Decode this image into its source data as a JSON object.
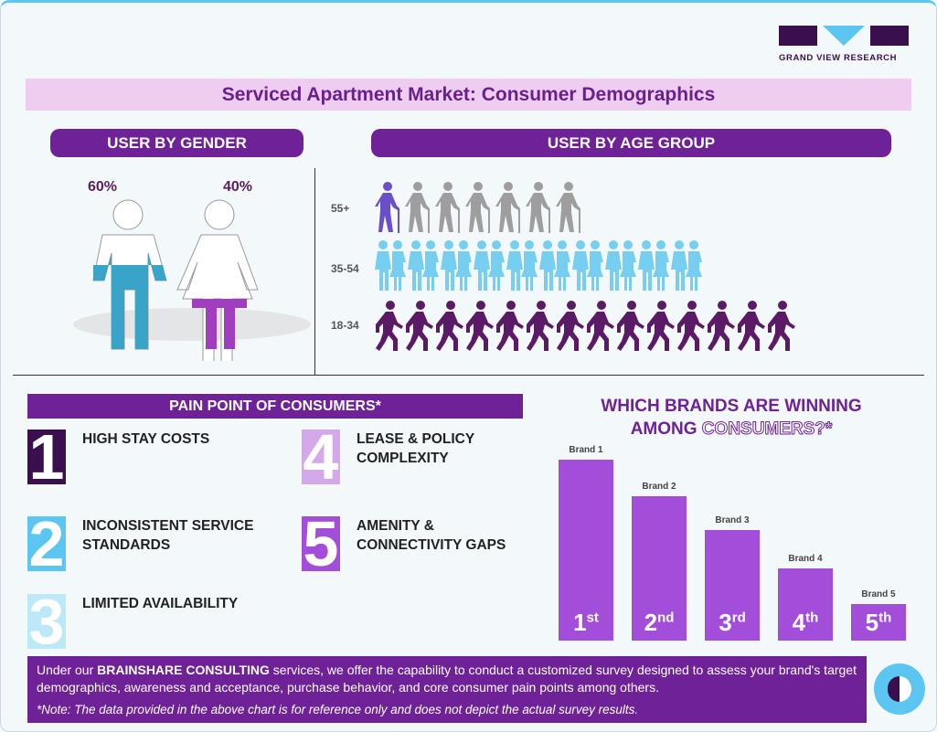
{
  "brand": {
    "name": "GRAND VIEW RESEARCH"
  },
  "title": "Serviced Apartment Market: Consumer Demographics",
  "gender": {
    "header": "USER BY GENDER",
    "male_pct": "60%",
    "female_pct": "40%",
    "male_value": 60,
    "female_value": 40,
    "colors": {
      "male": "#3aa3c8",
      "female": "#a13dbf"
    }
  },
  "age": {
    "header": "USER BY AGE GROUP",
    "groups": [
      {
        "label": "55+",
        "count": 7,
        "highlighted": 1,
        "color": "#9e9e9e",
        "highlight_color": "#6a4fc9",
        "icon": "elderly-person-icon"
      },
      {
        "label": "35-54",
        "count": 20,
        "color": "#76cff1",
        "icon": "couple-icon"
      },
      {
        "label": "18-34",
        "count": 14,
        "color": "#5a1a66",
        "icon": "walking-person-icon"
      }
    ]
  },
  "pain": {
    "header": "PAIN POINT OF CONSUMERS*",
    "items": [
      {
        "num": "1",
        "text": "HIGH STAY COSTS",
        "color": "#3a0f4e"
      },
      {
        "num": "2",
        "text": "INCONSISTENT SERVICE STANDARDS",
        "color": "#5bc6f2"
      },
      {
        "num": "3",
        "text": "LIMITED AVAILABILITY",
        "color": "#bde8f8"
      },
      {
        "num": "4",
        "text": "LEASE & POLICY COMPLEXITY",
        "color": "#d4a9ea"
      },
      {
        "num": "5",
        "text": "AMENITY & CONNECTIVITY GAPS",
        "color": "#a34ddb"
      }
    ]
  },
  "brands": {
    "question_a": "WHICH BRANDS ARE WINNING",
    "question_b": "AMONG ",
    "question_c": "CONSUMERS?*",
    "bars": [
      {
        "label": "Brand 1",
        "rank": "1",
        "suffix": "st",
        "relative": 100
      },
      {
        "label": "Brand 2",
        "rank": "2",
        "suffix": "nd",
        "relative": 80
      },
      {
        "label": "Brand 3",
        "rank": "3",
        "suffix": "rd",
        "relative": 61
      },
      {
        "label": "Brand 4",
        "rank": "4",
        "suffix": "th",
        "relative": 40
      },
      {
        "label": "Brand 5",
        "rank": "5",
        "suffix": "th",
        "relative": 20
      }
    ]
  },
  "footer": {
    "pre": "Under our ",
    "bold": "BRAINSHARE CONSULTING",
    "post": " services, we offer the capability to conduct a customized survey designed to assess your brand's target demographics, awareness and acceptance, purchase behavior, and core consumer pain points among others.",
    "note": "*Note: The data provided in the above chart is for reference only and does not depict the actual survey results."
  }
}
